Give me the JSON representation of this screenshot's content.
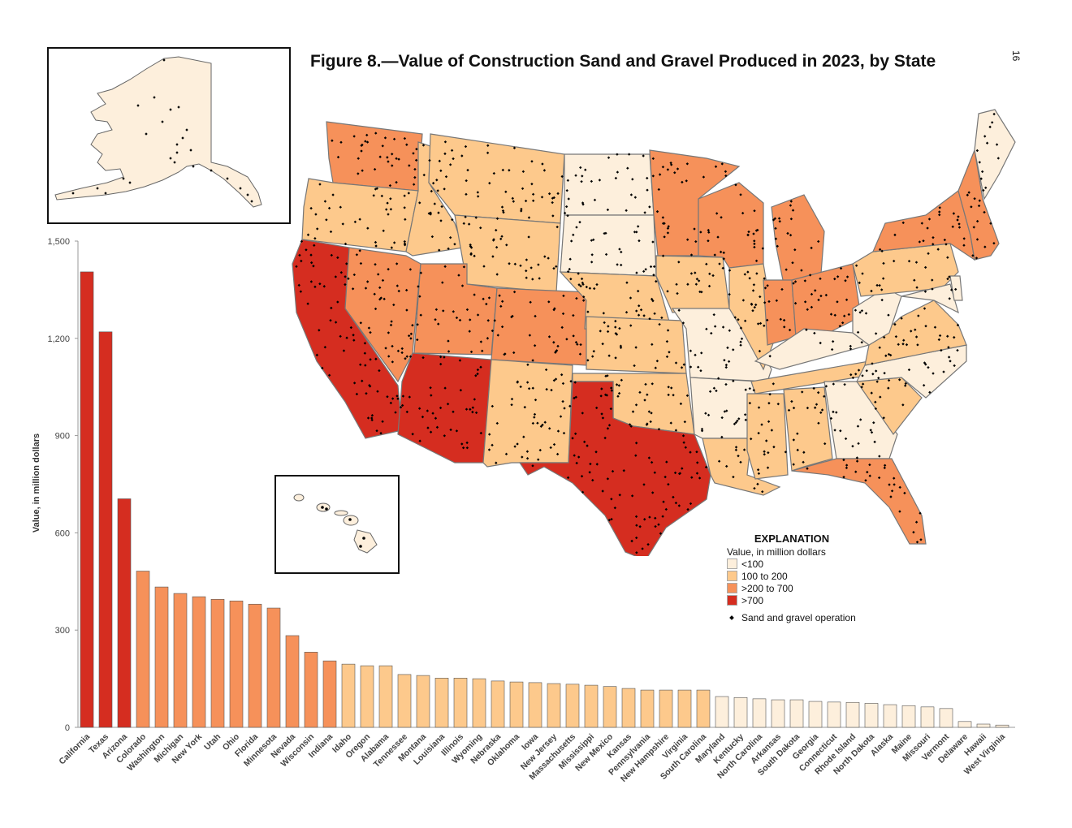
{
  "title": "Figure 8.—Value of Construction Sand and Gravel Produced in 2023, by State",
  "page_number": "16",
  "legend": {
    "title": "EXPLANATION",
    "subtitle": "Value, in million dollars",
    "classes": [
      {
        "label": "<100",
        "color": "#fdefdc"
      },
      {
        "label": "100 to 200",
        "color": "#fdc98c"
      },
      {
        "label": ">200 to 700",
        "color": "#f6915a"
      },
      {
        "label": ">700",
        "color": "#d52d20"
      }
    ],
    "operation_label": "Sand and gravel operation"
  },
  "chart_data": {
    "type": "bar",
    "ylabel": "Value, in million dollars",
    "ylim": [
      0,
      1500
    ],
    "yticks": [
      0,
      300,
      600,
      900,
      1200,
      1500
    ],
    "ytick_labels": [
      "0",
      "300",
      "600",
      "900",
      "1,200",
      "1,500"
    ],
    "grid": false,
    "categories": [
      "California",
      "Texas",
      "Arizona",
      "Colorado",
      "Washington",
      "Michigan",
      "New York",
      "Utah",
      "Ohio",
      "Florida",
      "Minnesota",
      "Nevada",
      "Wisconsin",
      "Indiana",
      "Idaho",
      "Oregon",
      "Alabama",
      "Tennessee",
      "Montana",
      "Louisiana",
      "Illinois",
      "Wyoming",
      "Nebraska",
      "Oklahoma",
      "Iowa",
      "New Jersey",
      "Massachusetts",
      "Mississippi",
      "New Mexico",
      "Kansas",
      "Pennsylvania",
      "New Hampshire",
      "Virginia",
      "South Carolina",
      "Maryland",
      "Kentucky",
      "North Carolina",
      "Arkansas",
      "South Dakota",
      "Georgia",
      "Connecticut",
      "Rhode Island",
      "North Dakota",
      "Alaska",
      "Maine",
      "Missouri",
      "Vermont",
      "Delaware",
      "Hawaii",
      "West Virginia"
    ],
    "values": [
      1405,
      1220,
      705,
      482,
      433,
      413,
      403,
      395,
      390,
      380,
      368,
      283,
      232,
      205,
      195,
      190,
      190,
      163,
      160,
      152,
      152,
      150,
      143,
      140,
      138,
      135,
      133,
      130,
      126,
      120,
      115,
      115,
      115,
      115,
      95,
      92,
      88,
      85,
      85,
      80,
      78,
      77,
      74,
      70,
      67,
      63,
      58,
      18,
      10,
      7
    ]
  },
  "map": {
    "classes": {
      "WA": 2,
      "OR": 1,
      "CA": 3,
      "NV": 2,
      "ID": 1,
      "MT": 1,
      "WY": 1,
      "UT": 2,
      "CO": 2,
      "AZ": 3,
      "NM": 1,
      "ND": 0,
      "SD": 0,
      "NE": 1,
      "KS": 1,
      "OK": 1,
      "TX": 3,
      "MN": 2,
      "IA": 1,
      "MO": 0,
      "AR": 0,
      "LA": 1,
      "WI": 2,
      "IL": 1,
      "MI": 2,
      "IN": 2,
      "OH": 2,
      "KY": 0,
      "TN": 1,
      "MS": 1,
      "AL": 1,
      "GA": 0,
      "FL": 2,
      "SC": 1,
      "NC": 0,
      "VA": 1,
      "WV": 0,
      "PA": 1,
      "NY": 2,
      "ME": 0,
      "NE_REGION": 2,
      "MD": 0,
      "DE": 0,
      "AK": 0,
      "HI": 0
    }
  }
}
